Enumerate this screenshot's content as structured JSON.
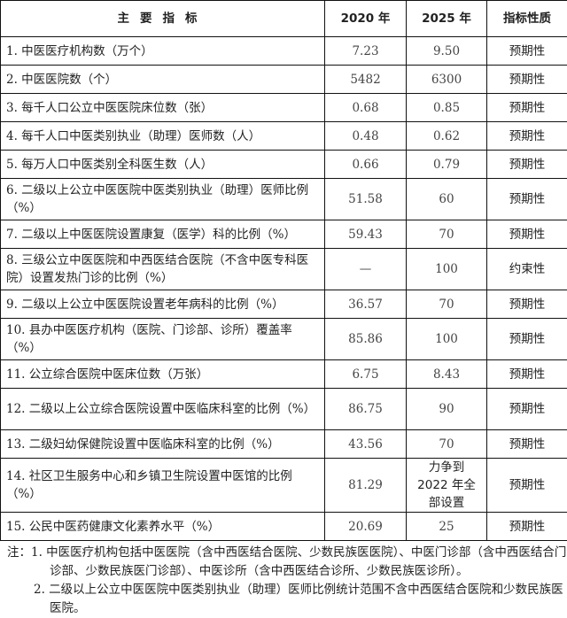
{
  "header": {
    "indicator": "主要指标",
    "y2020": "2020 年",
    "y2025": "2025 年",
    "nature": "指标性质"
  },
  "rows": [
    {
      "name": "1. 中医医疗机构数（万个）",
      "v2020": "7.23",
      "v2025": "9.50",
      "nature": "预期性"
    },
    {
      "name": "2. 中医医院数（个）",
      "v2020": "5482",
      "v2025": "6300",
      "nature": "预期性"
    },
    {
      "name": "3. 每千人口公立中医医院床位数（张）",
      "v2020": "0.68",
      "v2025": "0.85",
      "nature": "预期性"
    },
    {
      "name": "4. 每千人口中医类别执业（助理）医师数（人）",
      "v2020": "0.48",
      "v2025": "0.62",
      "nature": "预期性"
    },
    {
      "name": "5. 每万人口中医类别全科医生数（人）",
      "v2020": "0.66",
      "v2025": "0.79",
      "nature": "预期性"
    },
    {
      "name": "6. 二级以上公立中医医院中医类别执业（助理）医师比例（%）",
      "v2020": "51.58",
      "v2025": "60",
      "nature": "预期性"
    },
    {
      "name": "7. 二级以上中医医院设置康复（医学）科的比例（%）",
      "v2020": "59.43",
      "v2025": "70",
      "nature": "预期性"
    },
    {
      "name": "8. 三级公立中医医院和中西医结合医院（不含中医专科医院）设置发热门诊的比例（%）",
      "v2020": "—",
      "v2025": "100",
      "nature": "约束性"
    },
    {
      "name": "9. 二级以上公立中医医院设置老年病科的比例（%）",
      "v2020": "36.57",
      "v2025": "70",
      "nature": "预期性"
    },
    {
      "name": "10. 县办中医医疗机构（医院、门诊部、诊所）覆盖率（%）",
      "v2020": "85.86",
      "v2025": "100",
      "nature": "预期性"
    },
    {
      "name": "11. 公立综合医院中医床位数（万张）",
      "v2020": "6.75",
      "v2025": "8.43",
      "nature": "预期性"
    },
    {
      "name": "12. 二级以上公立综合医院设置中医临床科室的比例（%）",
      "v2020": "86.75",
      "v2025": "90",
      "nature": "预期性"
    },
    {
      "name": "13. 二级妇幼保健院设置中医临床科室的比例（%）",
      "v2020": "43.56",
      "v2025": "70",
      "nature": "预期性"
    },
    {
      "name": "14. 社区卫生服务中心和乡镇卫生院设置中医馆的比例（%）",
      "v2020": "81.29",
      "v2025": "力争到 2022 年全部设置",
      "nature": "预期性"
    },
    {
      "name": "15. 公民中医药健康文化素养水平（%）",
      "v2020": "20.69",
      "v2025": "25",
      "nature": "预期性"
    }
  ],
  "notes": [
    "注：1. 中医医疗机构包括中医医院（含中西医结合医院、少数民族医医院）、中医门诊部（含中西医结合门诊部、少数民族医门诊部）、中医诊所（含中西医结合诊所、少数民族医诊所）。",
    "2. 二级以上公立中医医院中医类别执业（助理）医师比例统计范围不含中西医结合医院和少数民族医医院。"
  ]
}
